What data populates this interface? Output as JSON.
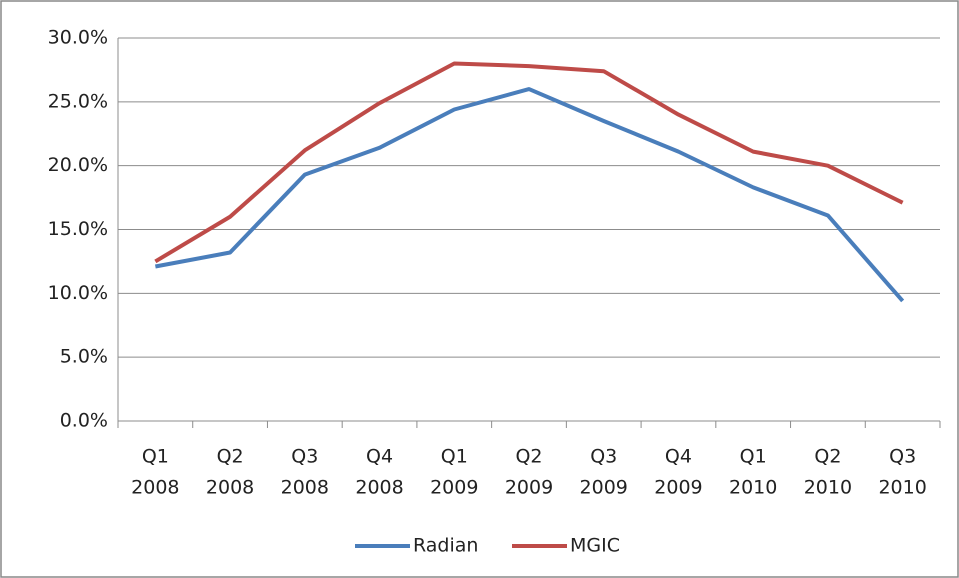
{
  "chart_data": {
    "type": "line",
    "categories": [
      [
        "Q1",
        "2008"
      ],
      [
        "Q2",
        "2008"
      ],
      [
        "Q3",
        "2008"
      ],
      [
        "Q4",
        "2008"
      ],
      [
        "Q1",
        "2009"
      ],
      [
        "Q2",
        "2009"
      ],
      [
        "Q3",
        "2009"
      ],
      [
        "Q4",
        "2009"
      ],
      [
        "Q1",
        "2010"
      ],
      [
        "Q2",
        "2010"
      ],
      [
        "Q3",
        "2010"
      ]
    ],
    "series": [
      {
        "name": "Radian",
        "color": "#4a7ebb",
        "values": [
          12.1,
          13.2,
          19.3,
          21.4,
          24.4,
          26.0,
          23.5,
          21.1,
          18.3,
          16.1,
          9.4
        ]
      },
      {
        "name": "MGIC",
        "color": "#be4b48",
        "values": [
          12.5,
          16.0,
          21.2,
          24.9,
          28.0,
          27.8,
          27.4,
          24.0,
          21.1,
          20.0,
          17.1
        ]
      }
    ],
    "ylim": [
      0,
      30
    ],
    "yticks": [
      {
        "value": 0,
        "label": "0.0%"
      },
      {
        "value": 5,
        "label": "5.0%"
      },
      {
        "value": 10,
        "label": "10.0%"
      },
      {
        "value": 15,
        "label": "15.0%"
      },
      {
        "value": 20,
        "label": "20.0%"
      },
      {
        "value": 25,
        "label": "25.0%"
      },
      {
        "value": 30,
        "label": "30.0%"
      }
    ],
    "grid": true,
    "legend": "bottom"
  }
}
